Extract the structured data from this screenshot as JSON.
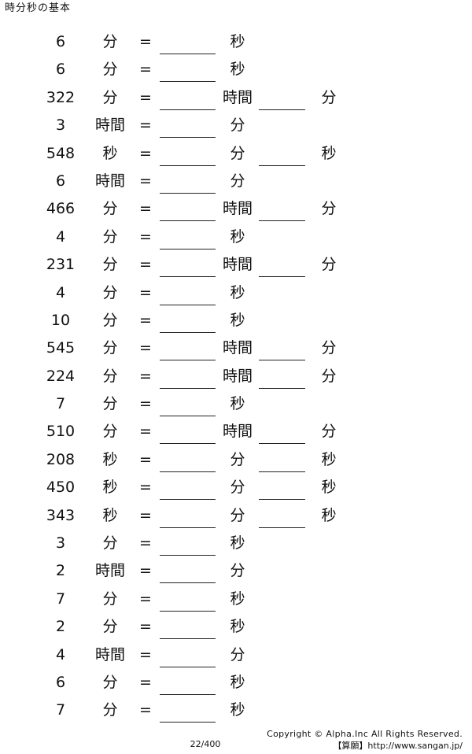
{
  "title": "時分秒の基本",
  "rows": [
    {
      "num": "6",
      "unit1": "分",
      "eq": "=",
      "unit2": "秒",
      "unit3": ""
    },
    {
      "num": "6",
      "unit1": "分",
      "eq": "=",
      "unit2": "秒",
      "unit3": ""
    },
    {
      "num": "322",
      "unit1": "分",
      "eq": "=",
      "unit2": "時間",
      "unit3": "分"
    },
    {
      "num": "3",
      "unit1": "時間",
      "eq": "=",
      "unit2": "分",
      "unit3": ""
    },
    {
      "num": "548",
      "unit1": "秒",
      "eq": "=",
      "unit2": "分",
      "unit3": "秒"
    },
    {
      "num": "6",
      "unit1": "時間",
      "eq": "=",
      "unit2": "分",
      "unit3": ""
    },
    {
      "num": "466",
      "unit1": "分",
      "eq": "=",
      "unit2": "時間",
      "unit3": "分"
    },
    {
      "num": "4",
      "unit1": "分",
      "eq": "=",
      "unit2": "秒",
      "unit3": ""
    },
    {
      "num": "231",
      "unit1": "分",
      "eq": "=",
      "unit2": "時間",
      "unit3": "分"
    },
    {
      "num": "4",
      "unit1": "分",
      "eq": "=",
      "unit2": "秒",
      "unit3": ""
    },
    {
      "num": "10",
      "unit1": "分",
      "eq": "=",
      "unit2": "秒",
      "unit3": ""
    },
    {
      "num": "545",
      "unit1": "分",
      "eq": "=",
      "unit2": "時間",
      "unit3": "分"
    },
    {
      "num": "224",
      "unit1": "分",
      "eq": "=",
      "unit2": "時間",
      "unit3": "分"
    },
    {
      "num": "7",
      "unit1": "分",
      "eq": "=",
      "unit2": "秒",
      "unit3": ""
    },
    {
      "num": "510",
      "unit1": "分",
      "eq": "=",
      "unit2": "時間",
      "unit3": "分"
    },
    {
      "num": "208",
      "unit1": "秒",
      "eq": "=",
      "unit2": "分",
      "unit3": "秒"
    },
    {
      "num": "450",
      "unit1": "秒",
      "eq": "=",
      "unit2": "分",
      "unit3": "秒"
    },
    {
      "num": "343",
      "unit1": "秒",
      "eq": "=",
      "unit2": "分",
      "unit3": "秒"
    },
    {
      "num": "3",
      "unit1": "分",
      "eq": "=",
      "unit2": "秒",
      "unit3": ""
    },
    {
      "num": "2",
      "unit1": "時間",
      "eq": "=",
      "unit2": "分",
      "unit3": ""
    },
    {
      "num": "7",
      "unit1": "分",
      "eq": "=",
      "unit2": "秒",
      "unit3": ""
    },
    {
      "num": "2",
      "unit1": "分",
      "eq": "=",
      "unit2": "秒",
      "unit3": ""
    },
    {
      "num": "4",
      "unit1": "時間",
      "eq": "=",
      "unit2": "分",
      "unit3": ""
    },
    {
      "num": "6",
      "unit1": "分",
      "eq": "=",
      "unit2": "秒",
      "unit3": ""
    },
    {
      "num": "7",
      "unit1": "分",
      "eq": "=",
      "unit2": "秒",
      "unit3": ""
    }
  ],
  "footer": {
    "page": "22/400",
    "copyright": "Copyright © Alpha.Inc All Rights Reserved.",
    "site": "【算願】http://www.sangan.jp/"
  }
}
